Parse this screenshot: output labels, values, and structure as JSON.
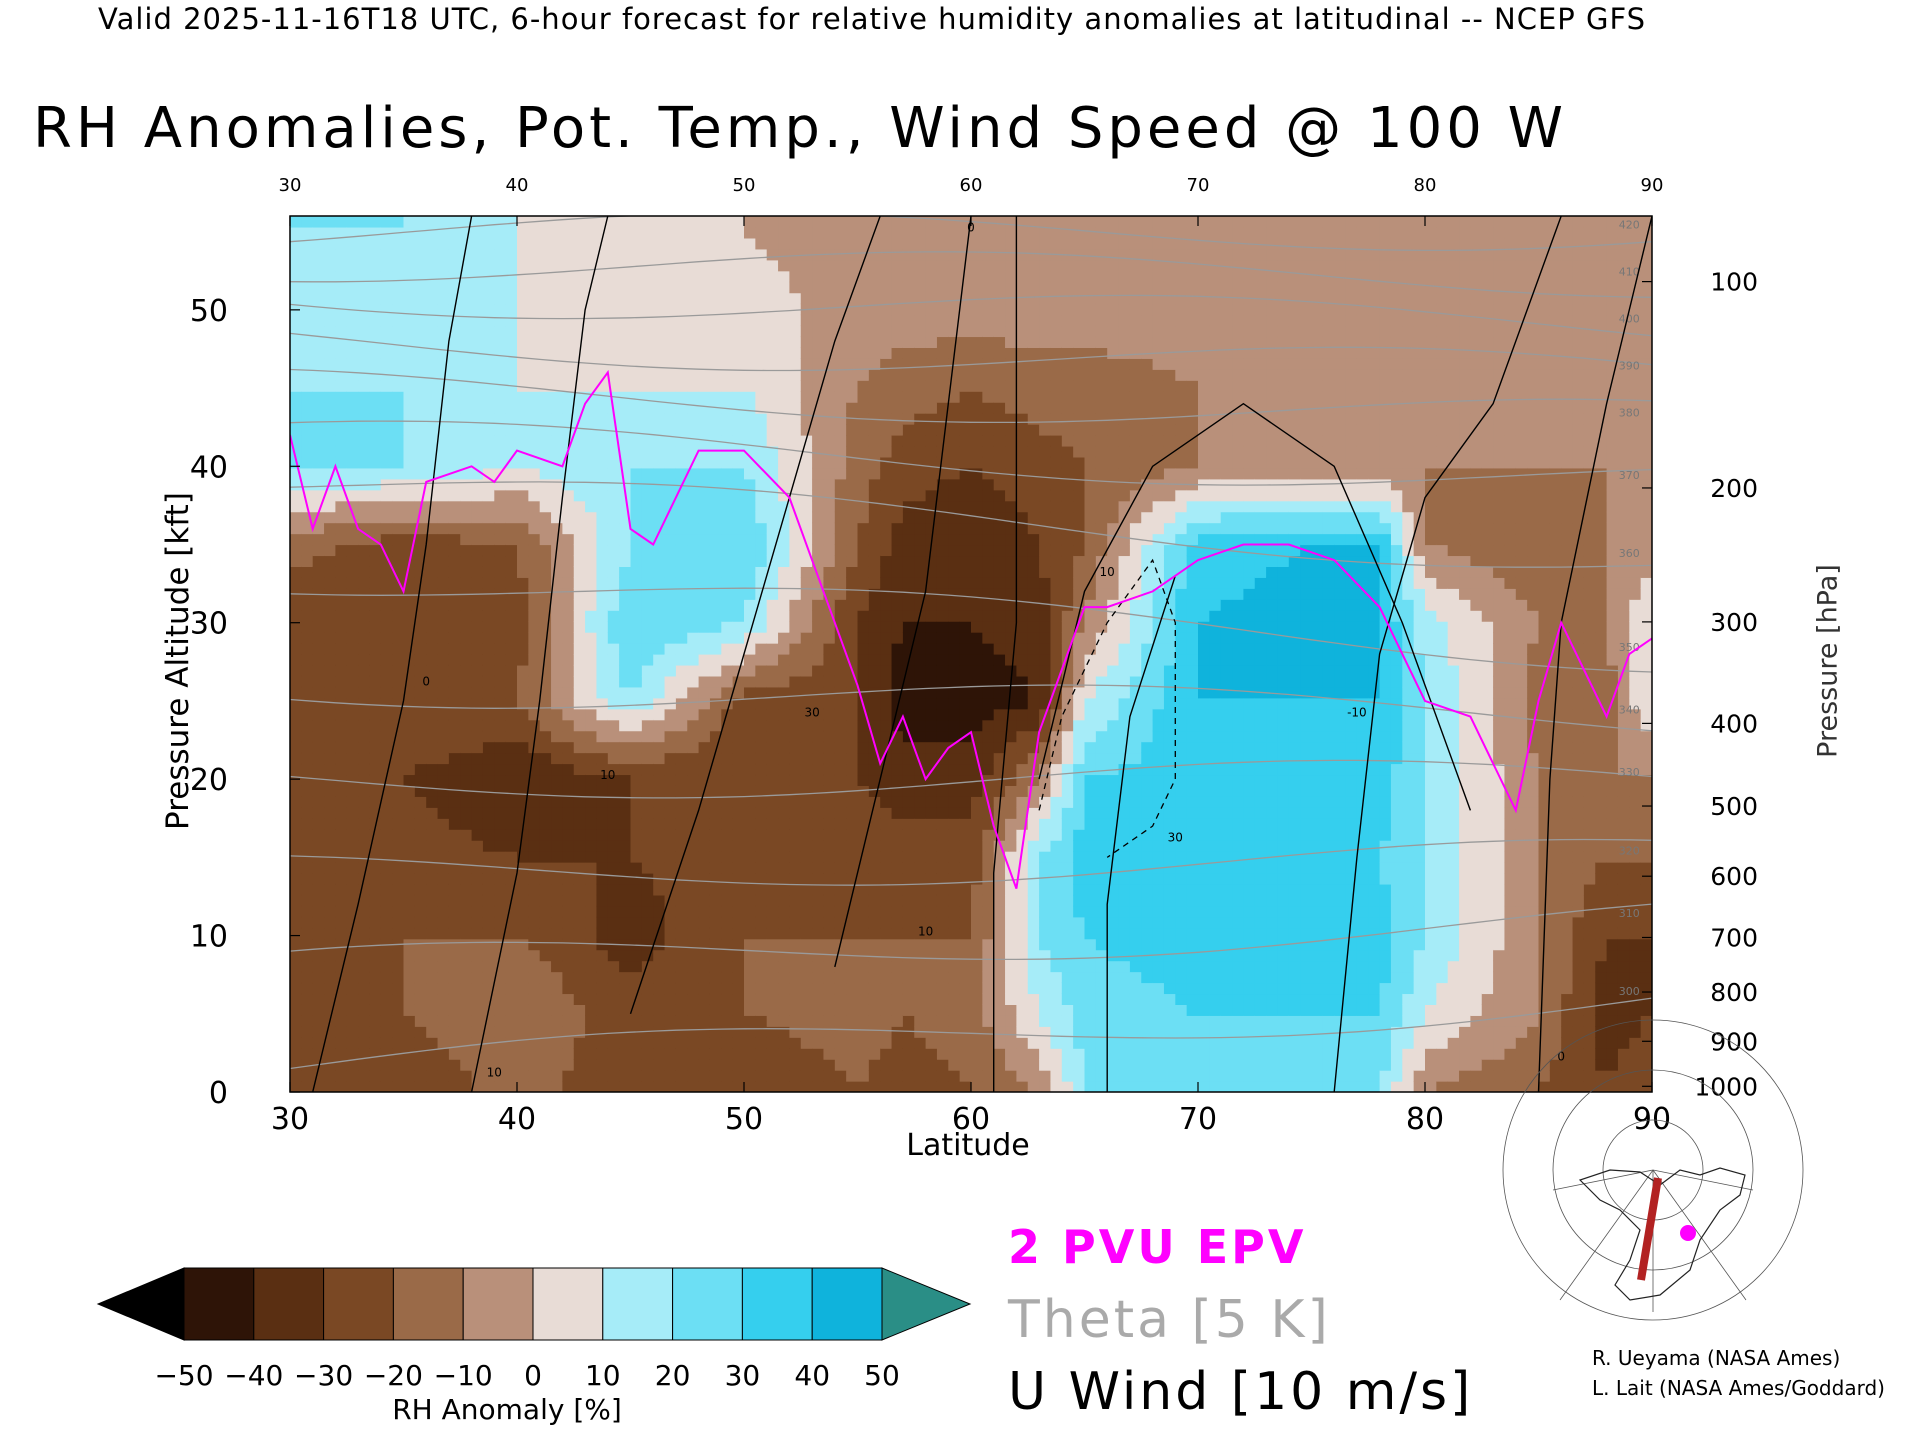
{
  "header": "Valid 2025-11-16T18 UTC, 6-hour forecast for relative humidity anomalies at latitudinal -- NCEP GFS",
  "chart_data": {
    "type": "heatmap",
    "title": "RH Anomalies, Pot. Temp., Wind Speed @ 100 W",
    "xlabel": "Latitude",
    "ylabel_left": "Pressure Altitude [kft]",
    "ylabel_right": "Pressure [hPa]",
    "xlim": [
      30,
      90
    ],
    "ylim_kft": [
      0,
      56
    ],
    "x_ticks": [
      "30",
      "40",
      "50",
      "60",
      "70",
      "80",
      "90"
    ],
    "x_ticks_top": [
      "30",
      "40",
      "50",
      "60",
      "70",
      "80",
      "90"
    ],
    "y_ticks_left": [
      {
        "label": "0",
        "value": 0
      },
      {
        "label": "10",
        "value": 10
      },
      {
        "label": "20",
        "value": 20
      },
      {
        "label": "30",
        "value": 30
      },
      {
        "label": "40",
        "value": 40
      },
      {
        "label": "50",
        "value": 50
      }
    ],
    "y_ticks_right": [
      {
        "label": "100",
        "value": 100
      },
      {
        "label": "200",
        "value": 200
      },
      {
        "label": "300",
        "value": 300
      },
      {
        "label": "400",
        "value": 400
      },
      {
        "label": "500",
        "value": 500
      },
      {
        "label": "600",
        "value": 600
      },
      {
        "label": "700",
        "value": 700
      },
      {
        "label": "800",
        "value": 800
      },
      {
        "label": "900",
        "value": 900
      },
      {
        "label": "1000",
        "value": 1000
      }
    ],
    "colorbar": {
      "label": "RH Anomaly [%]",
      "ticks": [
        "-50",
        "-40",
        "-30",
        "-20",
        "-10",
        "0",
        "10",
        "20",
        "30",
        "40",
        "50"
      ],
      "colors": [
        "#000000",
        "#2e1407",
        "#5a2f12",
        "#7a4824",
        "#9a6a48",
        "#b9907a",
        "#e8dcd6",
        "#d7f5fb",
        "#a6ecf8",
        "#6cdff4",
        "#35cfee",
        "#0fb3dc",
        "#0a8cb0",
        "#2a8e86"
      ]
    },
    "rh_anomaly": {
      "lat": [
        30,
        35,
        40,
        45,
        50,
        55,
        57,
        60,
        63,
        65,
        70,
        75,
        78,
        80,
        85,
        88,
        90
      ],
      "kft": [
        0,
        5,
        10,
        15,
        20,
        25,
        30,
        35,
        40,
        45,
        50,
        55
      ],
      "values": [
        [
          -25,
          -30,
          -15,
          -30,
          -30,
          -20,
          -25,
          -20,
          -10,
          20,
          20,
          20,
          20,
          -10,
          -20,
          -30,
          -20
        ],
        [
          -25,
          -20,
          -10,
          -25,
          -20,
          -15,
          -20,
          -15,
          10,
          25,
          30,
          30,
          30,
          10,
          -10,
          -35,
          -30
        ],
        [
          -30,
          -20,
          -20,
          -35,
          -20,
          -20,
          -20,
          -20,
          20,
          30,
          35,
          35,
          35,
          20,
          -10,
          -30,
          -30
        ],
        [
          -30,
          -25,
          -30,
          -30,
          -25,
          -20,
          -25,
          -25,
          20,
          35,
          35,
          35,
          30,
          20,
          -10,
          -20,
          -20
        ],
        [
          -25,
          -30,
          -40,
          -30,
          -30,
          -30,
          -35,
          -35,
          -10,
          30,
          35,
          40,
          35,
          20,
          -10,
          -10,
          -10
        ],
        [
          -25,
          -20,
          -20,
          20,
          -25,
          -30,
          -45,
          -45,
          -40,
          10,
          40,
          40,
          40,
          20,
          -15,
          -15,
          10
        ],
        [
          -30,
          -30,
          -25,
          30,
          20,
          -30,
          -40,
          -40,
          -35,
          -10,
          40,
          45,
          40,
          15,
          -10,
          -10,
          10
        ],
        [
          -15,
          -25,
          -20,
          20,
          30,
          -20,
          -35,
          -40,
          -30,
          -20,
          35,
          40,
          40,
          -10,
          -20,
          -10,
          -5
        ],
        [
          20,
          20,
          10,
          20,
          20,
          -15,
          -25,
          -30,
          -25,
          -20,
          -10,
          -10,
          -10,
          -10,
          -10,
          -10,
          -5
        ],
        [
          20,
          20,
          10,
          10,
          10,
          -10,
          -15,
          -20,
          -15,
          -15,
          -10,
          -10,
          -10,
          -10,
          -10,
          -10,
          -5
        ],
        [
          20,
          10,
          10,
          5,
          5,
          -5,
          -5,
          -5,
          -5,
          -5,
          -5,
          -5,
          -5,
          -5,
          -5,
          -5,
          -5
        ],
        [
          20,
          20,
          10,
          5,
          0,
          -5,
          -5,
          -5,
          -5,
          -5,
          -5,
          -5,
          -5,
          -5,
          -5,
          -5,
          -5
        ]
      ]
    },
    "theta_contours": {
      "labels": [
        "300",
        "310",
        "320",
        "330",
        "340",
        "350",
        "360",
        "370",
        "380",
        "390",
        "400",
        "410",
        "420"
      ],
      "interval_K": 5,
      "kft_at_lat30": [
        1.5,
        8,
        14,
        20,
        26,
        33,
        39,
        42,
        45,
        48,
        51,
        53,
        55
      ],
      "kft_at_lat90": [
        6,
        11,
        15,
        20,
        24,
        28,
        34,
        39,
        43,
        46,
        49,
        52,
        55
      ]
    },
    "u_wind_contours": {
      "interval_m_s": 10,
      "labels": [
        "0",
        "10",
        "30",
        "10",
        "0",
        "10",
        "30",
        "-10",
        "0",
        "10"
      ]
    },
    "epv_2pvu": {
      "lat": [
        30,
        31,
        32,
        33,
        34,
        35,
        36,
        38,
        39,
        40,
        42,
        43,
        44,
        45,
        46,
        48,
        50,
        52,
        54,
        55,
        56,
        57,
        58,
        59,
        60,
        61,
        62,
        63,
        64,
        65,
        66,
        68,
        70,
        72,
        74,
        76,
        78,
        80,
        82,
        83,
        84,
        85,
        86,
        88,
        89,
        90
      ],
      "kft": [
        42,
        36,
        40,
        36,
        35,
        32,
        39,
        40,
        39,
        41,
        40,
        44,
        46,
        36,
        35,
        41,
        41,
        38,
        30,
        26,
        21,
        24,
        20,
        22,
        23,
        17,
        13,
        23,
        27,
        31,
        31,
        32,
        34,
        35,
        35,
        34,
        31,
        25,
        24,
        21,
        18,
        25,
        30,
        24,
        28,
        29
      ]
    }
  },
  "legend": {
    "epv": "2 PVU EPV",
    "theta": "Theta [5 K]",
    "wind": "U Wind [10 m/s]"
  },
  "credits": {
    "line1": "R. Ueyama (NASA Ames)",
    "line2": "L. Lait (NASA Ames/Goddard)"
  },
  "inset_map": {
    "cross_section_line_color": "#b22222",
    "marker_color": "#ff00ff"
  }
}
